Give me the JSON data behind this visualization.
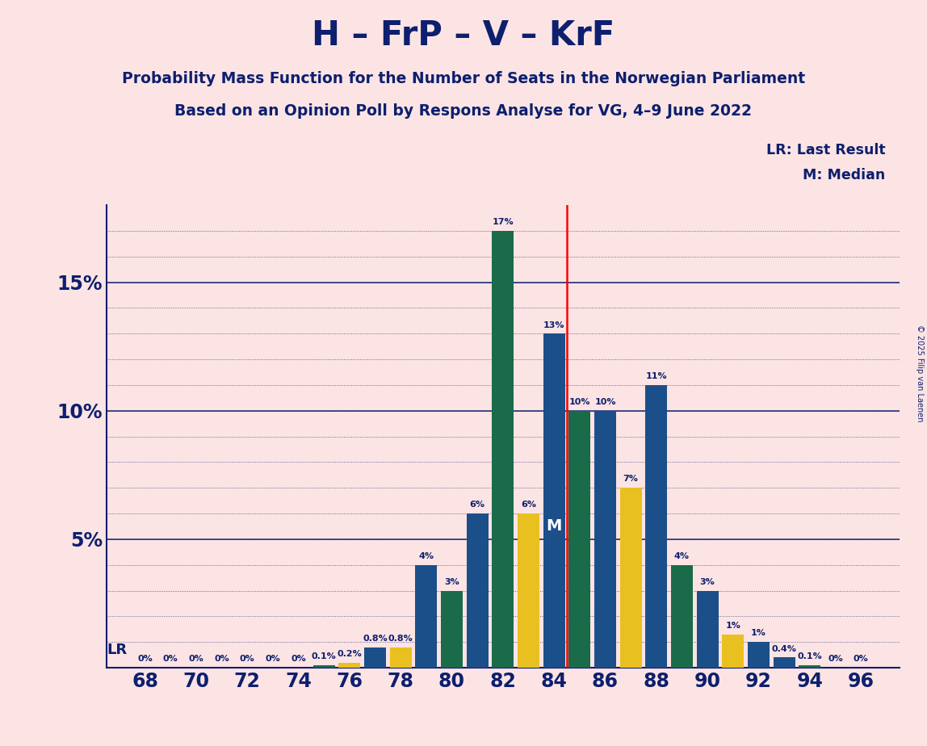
{
  "title": "H – FrP – V – KrF",
  "subtitle1": "Probability Mass Function for the Number of Seats in the Norwegian Parliament",
  "subtitle2": "Based on an Opinion Poll by Respons Analyse for VG, 4–9 June 2022",
  "copyright": "© 2025 Filip van Laenen",
  "lr_label": "LR: Last Result",
  "median_label": "M: Median",
  "background_color": "#fce4e4",
  "title_color": "#0d1f6e",
  "text_color": "#0d1f6e",
  "bar_color_blue": "#1b4f8a",
  "bar_color_green": "#1a6b4a",
  "bar_color_yellow": "#e8c020",
  "seats": [
    68,
    69,
    70,
    71,
    72,
    73,
    74,
    75,
    76,
    77,
    78,
    79,
    80,
    81,
    82,
    83,
    84,
    85,
    86,
    87,
    88,
    89,
    90,
    91,
    92,
    93,
    94,
    95,
    96
  ],
  "values": [
    0.0,
    0.0,
    0.0,
    0.0,
    0.0,
    0.0,
    0.0,
    0.1,
    0.2,
    0.8,
    0.8,
    4.0,
    3.0,
    6.0,
    17.0,
    6.0,
    13.0,
    10.0,
    10.0,
    7.0,
    11.0,
    4.0,
    3.0,
    1.3,
    1.0,
    0.4,
    0.1,
    0.0,
    0.0
  ],
  "bar_colors": [
    "#1b4f8a",
    "#1a6b4a",
    "#e8c020",
    "#1b4f8a",
    "#1a6b4a",
    "#e8c020",
    "#1b4f8a",
    "#1a6b4a",
    "#e8c020",
    "#1b4f8a",
    "#e8c020",
    "#1b4f8a",
    "#1a6b4a",
    "#1b4f8a",
    "#1a6b4a",
    "#e8c020",
    "#1b4f8a",
    "#1a6b4a",
    "#1b4f8a",
    "#e8c020",
    "#1b4f8a",
    "#1a6b4a",
    "#1b4f8a",
    "#e8c020",
    "#1b4f8a",
    "#1b4f8a",
    "#1a6b4a",
    "#e8c020",
    "#1b4f8a"
  ],
  "ylim": [
    0,
    18
  ],
  "xtick_positions": [
    68,
    70,
    72,
    74,
    76,
    78,
    80,
    82,
    84,
    86,
    88,
    90,
    92,
    94,
    96
  ],
  "grid_color": "#0d1f6e",
  "median_x": 84.5,
  "lr_x": 68
}
